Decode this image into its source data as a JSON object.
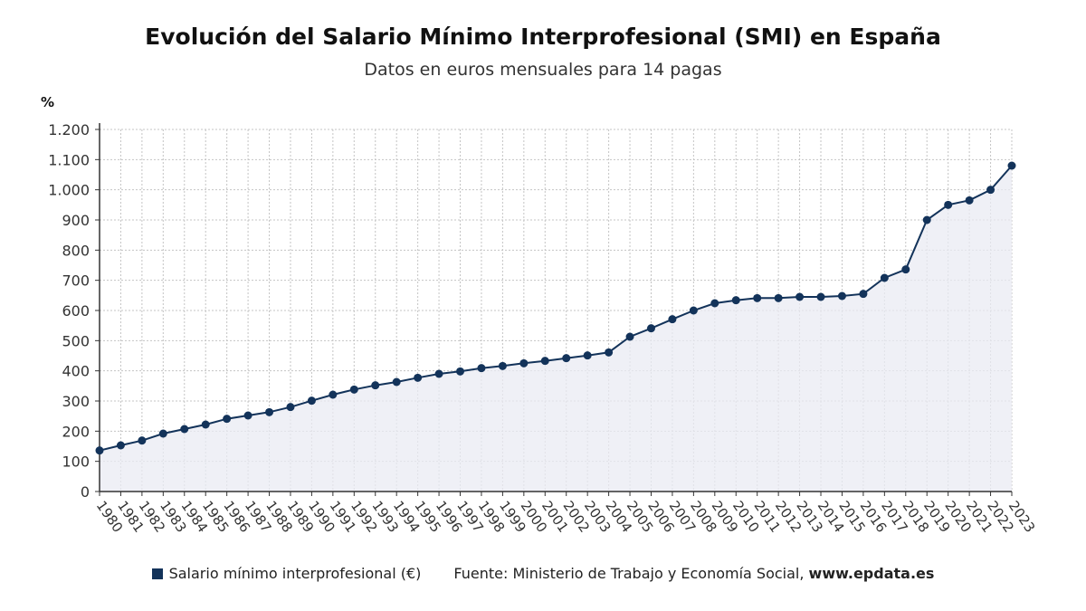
{
  "title": "Evolución del Salario Mínimo Interprofesional (SMI) en España",
  "subtitle": "Datos en euros mensuales para 14 pagas",
  "unit_label": "%",
  "legend_label": "Salario mínimo interprofesional (€)",
  "source_text": "Fuente: Ministerio de Trabajo y Economía Social,",
  "source_site": "www.epdata.es",
  "colors": {
    "line": "#13335a",
    "area": "#e9ebf3",
    "grid": "#c4c4c4"
  },
  "chart_data": {
    "type": "line",
    "title": "Evolución del Salario Mínimo Interprofesional (SMI) en España",
    "subtitle": "Datos en euros mensuales para 14 pagas",
    "ylabel": "%",
    "ylim": [
      0,
      1200
    ],
    "yticks": [
      0,
      100,
      200,
      300,
      400,
      500,
      600,
      700,
      800,
      900,
      1000,
      1100,
      1200
    ],
    "ytick_labels": [
      "0",
      "100",
      "200",
      "300",
      "400",
      "500",
      "600",
      "700",
      "800",
      "900",
      "1.000",
      "1.100",
      "1.200"
    ],
    "grid": true,
    "legend_placement": "bottom",
    "x": [
      "1980",
      "1981",
      "1982",
      "1983",
      "1984",
      "1985",
      "1986",
      "1987",
      "1988",
      "1989",
      "1990",
      "1991",
      "1992",
      "1993",
      "1994",
      "1995",
      "1996",
      "1997",
      "1998",
      "1999",
      "2000",
      "2001",
      "2002",
      "2003",
      "2004",
      "2005",
      "2006",
      "2007",
      "2008",
      "2009",
      "2010",
      "2011",
      "2012",
      "2013",
      "2014",
      "2015",
      "2016",
      "2017",
      "2018",
      "2019",
      "2020",
      "2021",
      "2022",
      "2023"
    ],
    "series": [
      {
        "name": "Salario mínimo interprofesional (€)",
        "values": [
          136,
          153,
          169,
          192,
          207,
          222,
          241,
          252,
          263,
          280,
          301,
          321,
          338,
          352,
          363,
          377,
          390,
          398,
          409,
          416,
          425,
          433,
          442,
          451,
          461,
          513,
          541,
          571,
          600,
          624,
          634,
          641,
          641,
          645,
          645,
          648,
          655,
          708,
          736,
          900,
          950,
          965,
          1000,
          1080
        ]
      }
    ]
  }
}
